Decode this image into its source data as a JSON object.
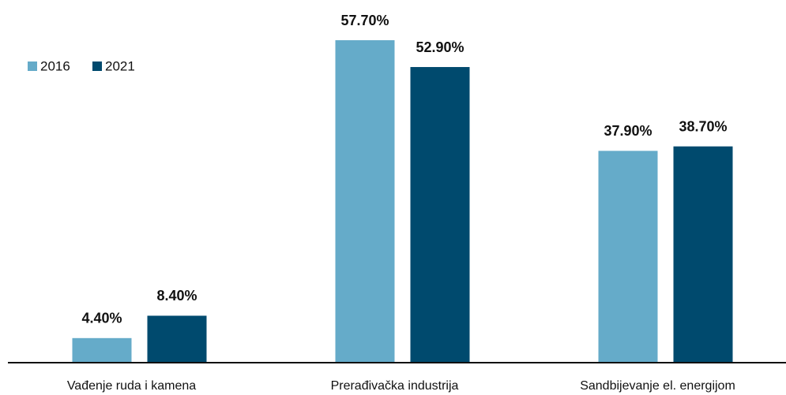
{
  "chart_data": {
    "type": "bar",
    "categories": [
      "Vađenje ruda i kamena",
      "Prerađivačka industrija",
      "Sandbijevanje el. energijom"
    ],
    "series": [
      {
        "name": "2016",
        "color": "#65abc9",
        "values": [
          4.4,
          57.7,
          37.9
        ],
        "value_labels": [
          "4.40%",
          "57.70%",
          "37.90%"
        ]
      },
      {
        "name": "2021",
        "color": "#004a6e",
        "values": [
          8.4,
          52.9,
          38.7
        ],
        "value_labels": [
          "8.40%",
          "52.90%",
          "38.70%"
        ]
      }
    ],
    "legend": "top-left"
  }
}
